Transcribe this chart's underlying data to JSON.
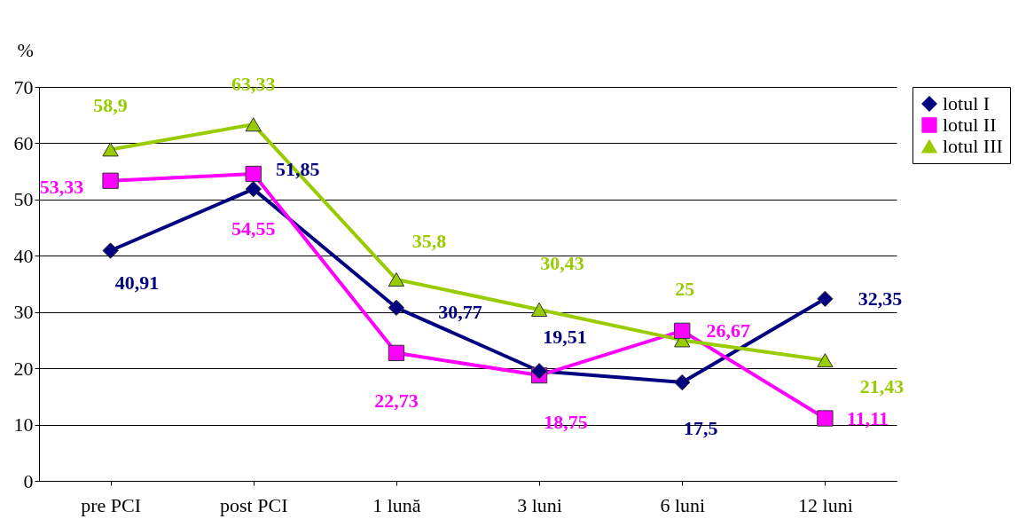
{
  "chart_data": {
    "type": "line",
    "ylabel": "%",
    "categories": [
      "pre PCI",
      "post PCI",
      "1 lună",
      "3 luni",
      "6 luni",
      "12 luni"
    ],
    "ylim": [
      0,
      70
    ],
    "yticks": [
      0,
      10,
      20,
      30,
      40,
      50,
      60,
      70
    ],
    "grid": "y",
    "legend": "right",
    "line_style": "solid",
    "series": [
      {
        "name": "lotul I",
        "color": "#000080",
        "marker": "diamond",
        "values": [
          40.91,
          51.85,
          30.77,
          19.51,
          17.5,
          32.35
        ],
        "value_labels": [
          "40,91",
          "51,85",
          "30,77",
          "19,51",
          "17,5",
          "32,35"
        ]
      },
      {
        "name": "lotul II",
        "color": "#ff00ff",
        "marker": "square",
        "values": [
          53.33,
          54.55,
          22.73,
          18.75,
          26.67,
          11.11
        ],
        "value_labels": [
          "53,33",
          "54,55",
          "22,73",
          "18,75",
          "26,67",
          "11,11"
        ]
      },
      {
        "name": "lotul III",
        "color": "#99cc00",
        "marker": "triangle",
        "values": [
          58.9,
          63.33,
          35.8,
          30.43,
          25,
          21.43
        ],
        "value_labels": [
          "58,9",
          "63,33",
          "35,8",
          "30,43",
          "25",
          "21,43"
        ]
      }
    ]
  }
}
